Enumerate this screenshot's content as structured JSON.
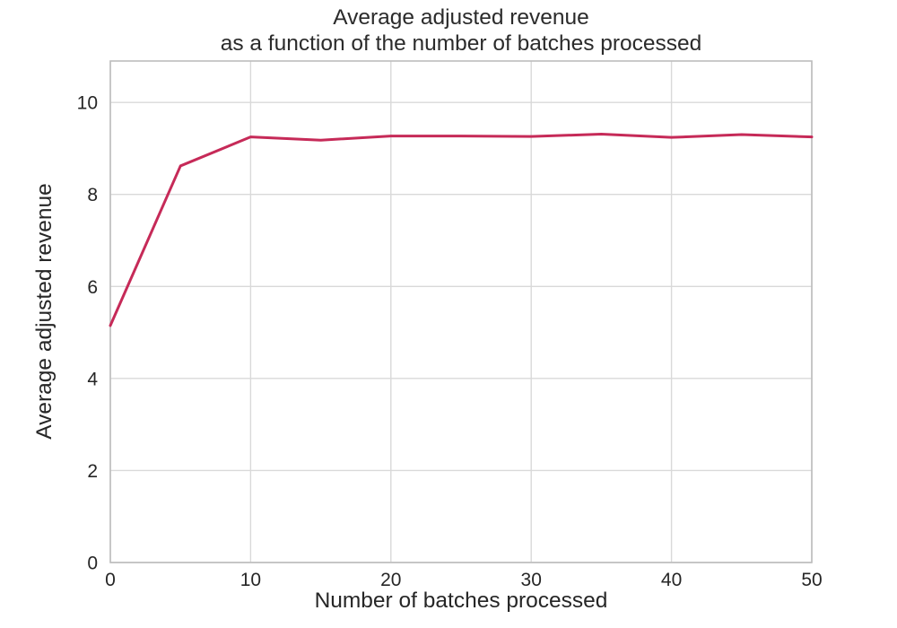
{
  "chart_data": {
    "type": "line",
    "title_lines": [
      "Average adjusted revenue",
      "as a function of the number of batches processed"
    ],
    "xlabel": "Number of batches processed",
    "ylabel": "Average adjusted revenue",
    "x": [
      0,
      5,
      10,
      15,
      20,
      25,
      30,
      35,
      40,
      45,
      50
    ],
    "series": [
      {
        "name": "average-adjusted-revenue",
        "color": "#c62a58",
        "values": [
          5.15,
          8.62,
          9.25,
          9.18,
          9.27,
          9.27,
          9.26,
          9.31,
          9.24,
          9.3,
          9.25
        ]
      }
    ],
    "xlim": [
      0,
      50
    ],
    "ylim": [
      0,
      10.9
    ],
    "xticks": [
      0,
      10,
      20,
      30,
      40,
      50
    ],
    "yticks": [
      0,
      2,
      4,
      6,
      8,
      10
    ],
    "grid": true,
    "grid_color": "#d9d9d9",
    "spine_color": "#bdbdbd",
    "background": "#ffffff",
    "line_width": 3
  }
}
